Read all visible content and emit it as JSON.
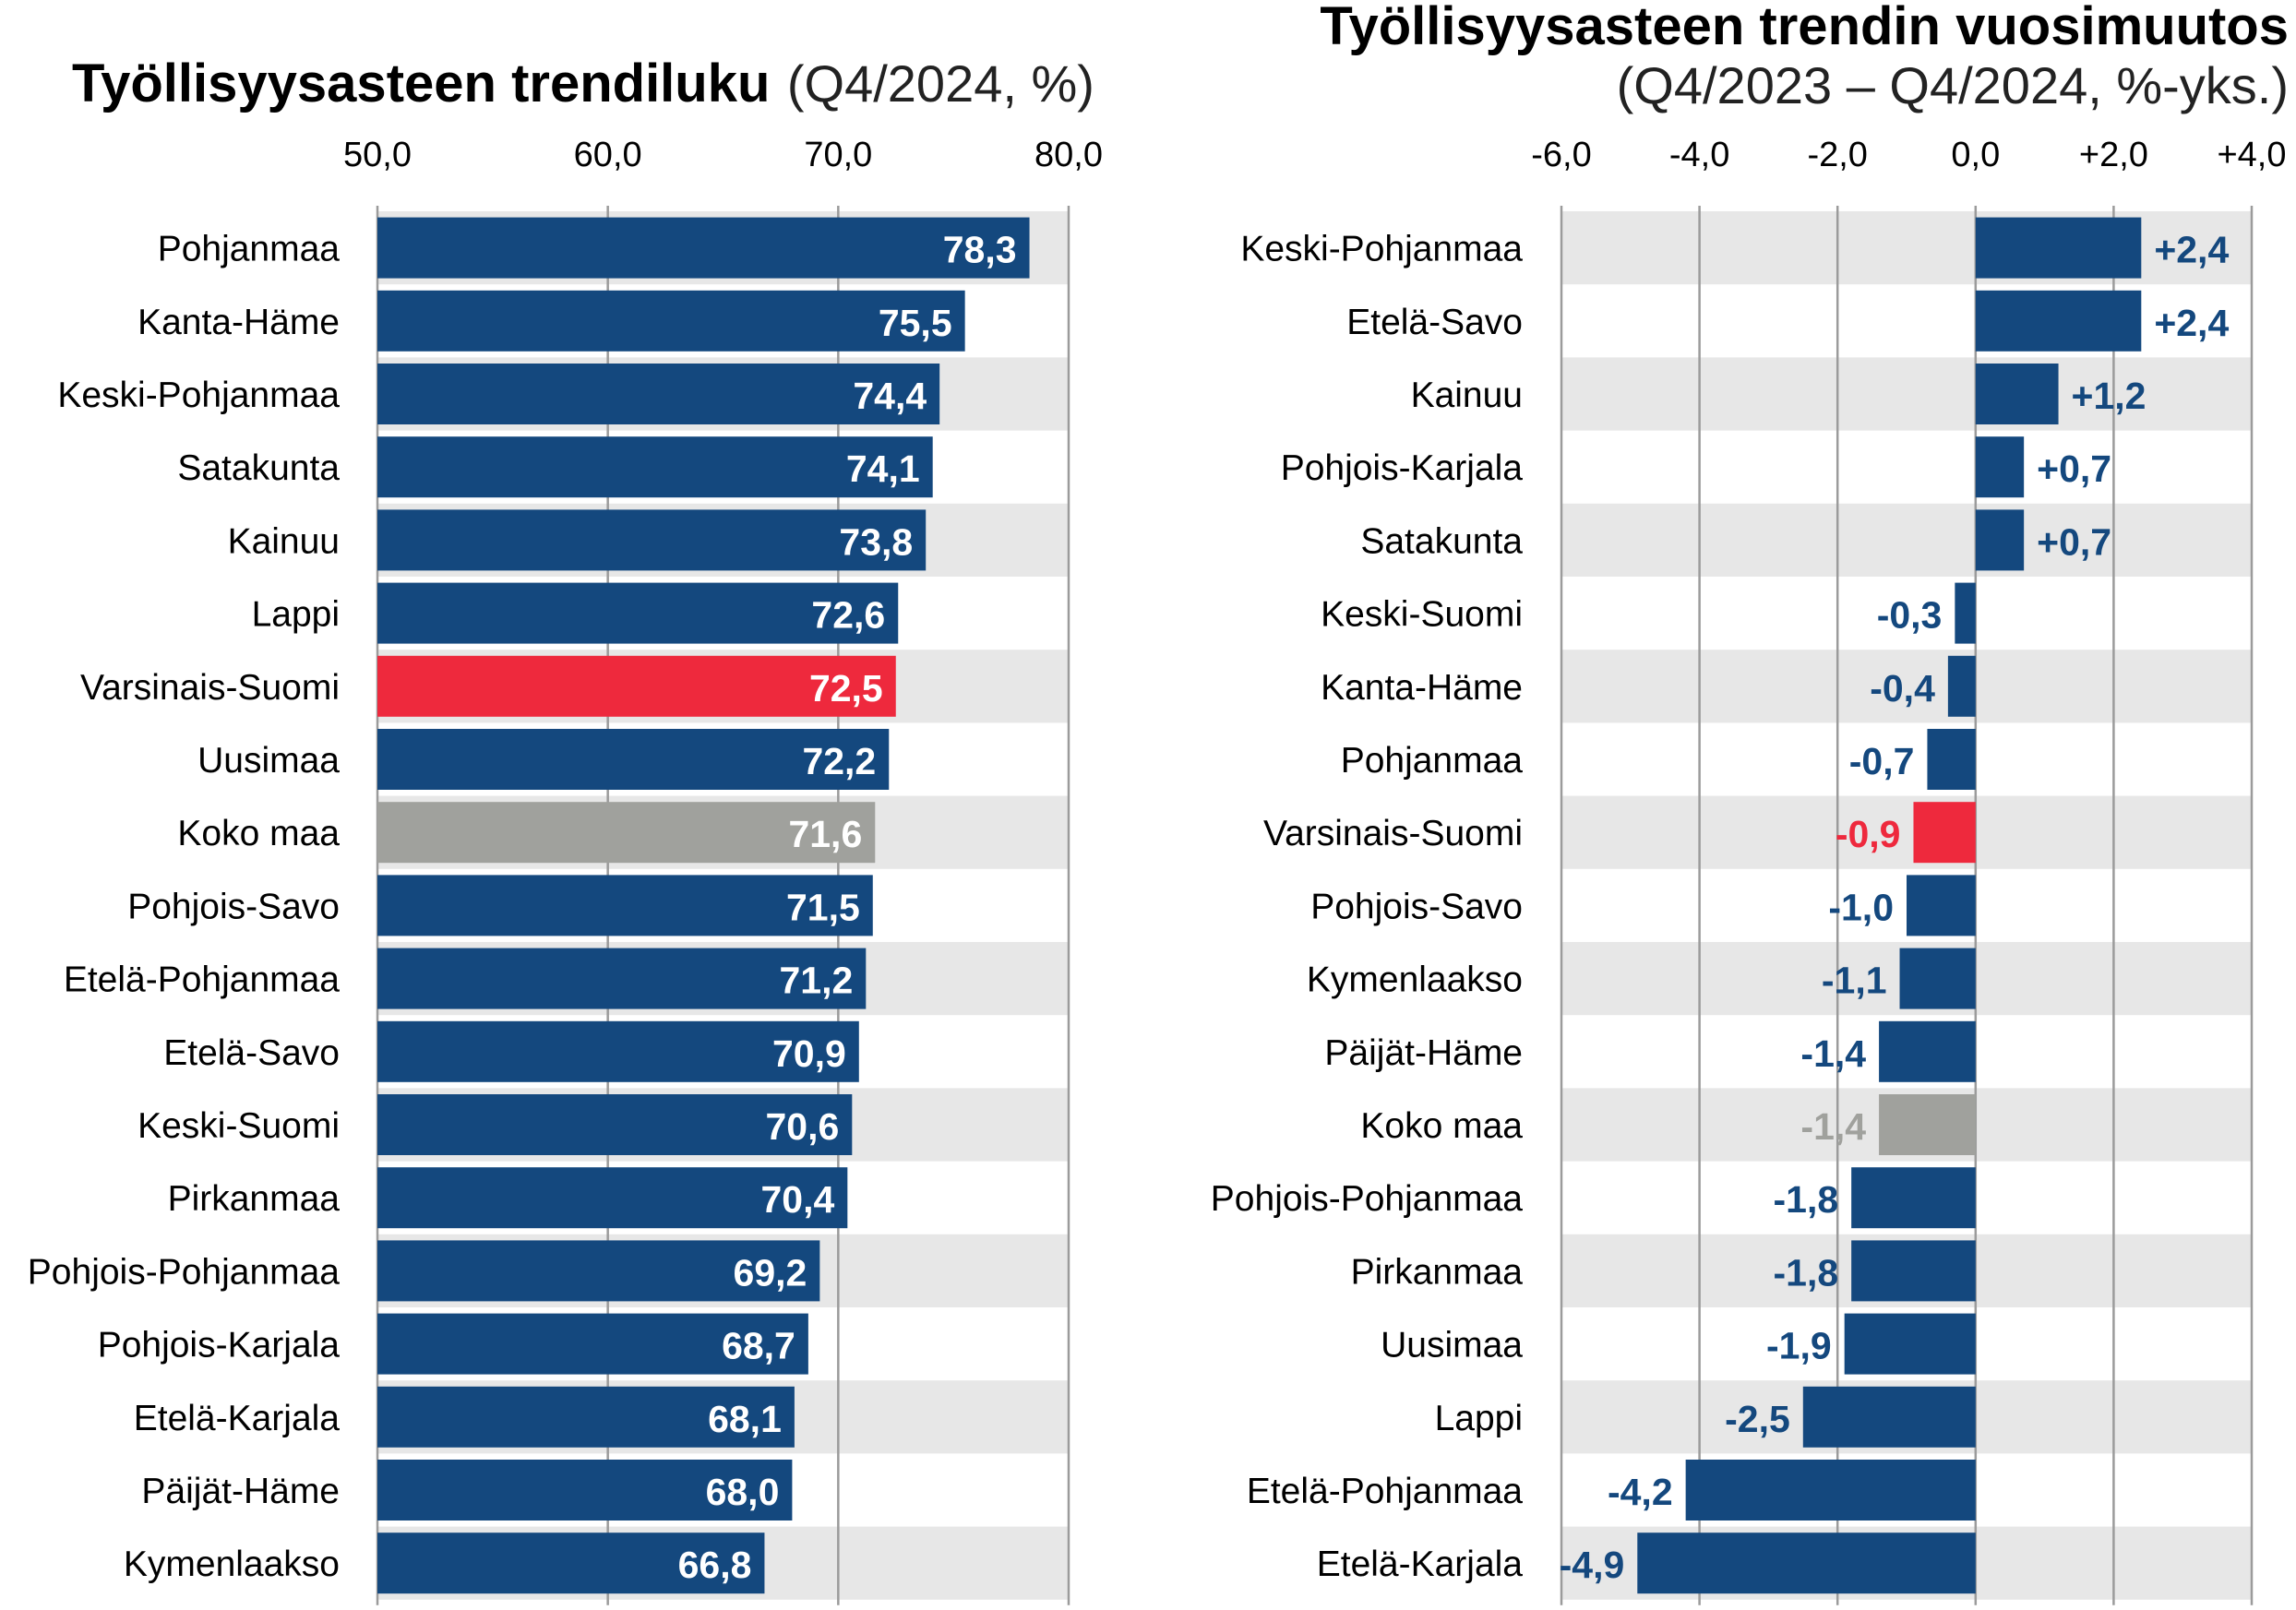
{
  "colors": {
    "bar": "#14487e",
    "highlight": "#ee293d",
    "total": "#a0a19d",
    "band": "#e7e7e7",
    "grid": "#9b9b9b"
  },
  "chart_data": [
    {
      "type": "bar",
      "orientation": "horizontal",
      "title": "Työllisyysasteen trendiluku",
      "subtitle": "(Q4/2024, %)",
      "xlim": [
        50,
        80
      ],
      "ticks": [
        "50,0",
        "60,0",
        "70,0",
        "80,0"
      ],
      "tick_values": [
        50,
        60,
        70,
        80
      ],
      "categories": [
        "Pohjanmaa",
        "Kanta-Häme",
        "Keski-Pohjanmaa",
        "Satakunta",
        "Kainuu",
        "Lappi",
        "Varsinais-Suomi",
        "Uusimaa",
        "Koko maa",
        "Pohjois-Savo",
        "Etelä-Pohjanmaa",
        "Etelä-Savo",
        "Keski-Suomi",
        "Pirkanmaa",
        "Pohjois-Pohjanmaa",
        "Pohjois-Karjala",
        "Etelä-Karjala",
        "Päijät-Häme",
        "Kymenlaakso"
      ],
      "values": [
        78.3,
        75.5,
        74.4,
        74.1,
        73.8,
        72.6,
        72.5,
        72.2,
        71.6,
        71.5,
        71.2,
        70.9,
        70.6,
        70.4,
        69.2,
        68.7,
        68.1,
        68.0,
        66.8
      ],
      "labels": [
        "78,3",
        "75,5",
        "74,4",
        "74,1",
        "73,8",
        "72,6",
        "72,5",
        "72,2",
        "71,6",
        "71,5",
        "71,2",
        "70,9",
        "70,6",
        "70,4",
        "69,2",
        "68,7",
        "68,1",
        "68,0",
        "66,8"
      ],
      "highlight": "Varsinais-Suomi",
      "total": "Koko maa",
      "grid": true
    },
    {
      "type": "bar",
      "orientation": "horizontal",
      "title": "Työllisyysasteen trendin vuosimuutos",
      "subtitle": "(Q4/2023 – Q4/2024, %-yks.)",
      "xlim": [
        -6,
        4
      ],
      "ticks": [
        "-6,0",
        "-4,0",
        "-2,0",
        "0,0",
        "+2,0",
        "+4,0"
      ],
      "tick_values": [
        -6,
        -4,
        -2,
        0,
        2,
        4
      ],
      "categories": [
        "Keski-Pohjanmaa",
        "Etelä-Savo",
        "Kainuu",
        "Pohjois-Karjala",
        "Satakunta",
        "Keski-Suomi",
        "Kanta-Häme",
        "Pohjanmaa",
        "Varsinais-Suomi",
        "Pohjois-Savo",
        "Kymenlaakso",
        "Päijät-Häme",
        "Koko maa",
        "Pohjois-Pohjanmaa",
        "Pirkanmaa",
        "Uusimaa",
        "Lappi",
        "Etelä-Pohjanmaa",
        "Etelä-Karjala"
      ],
      "values": [
        2.4,
        2.4,
        1.2,
        0.7,
        0.7,
        -0.3,
        -0.4,
        -0.7,
        -0.9,
        -1.0,
        -1.1,
        -1.4,
        -1.4,
        -1.8,
        -1.8,
        -1.9,
        -2.5,
        -4.2,
        -4.9
      ],
      "labels": [
        "+2,4",
        "+2,4",
        "+1,2",
        "+0,7",
        "+0,7",
        "-0,3",
        "-0,4",
        "-0,7",
        "-0,9",
        "-1,0",
        "-1,1",
        "-1,4",
        "-1,4",
        "-1,8",
        "-1,8",
        "-1,9",
        "-2,5",
        "-4,2",
        "-4,9"
      ],
      "highlight": "Varsinais-Suomi",
      "total": "Koko maa",
      "grid": true
    }
  ]
}
